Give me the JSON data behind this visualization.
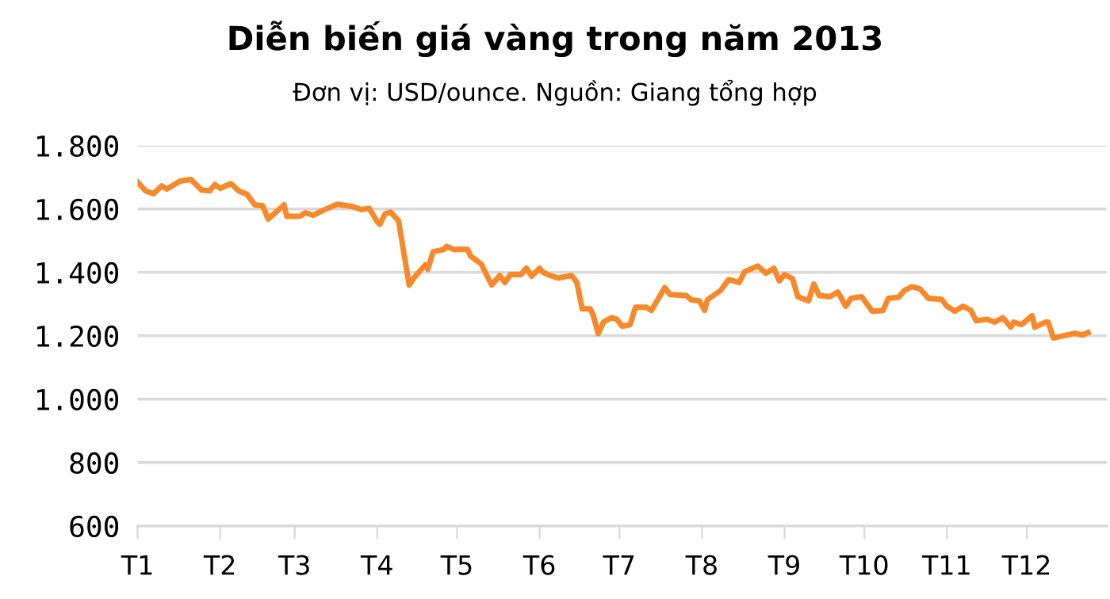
{
  "chart_data": {
    "type": "line",
    "title": "Diễn biến giá vàng trong năm 2013",
    "subtitle": "Đơn vị: USD/ounce. Nguồn: Giang tổng hợp",
    "series": [
      {
        "color": "#f7892a",
        "x": [
          "2013-01-01",
          "2013-01-04",
          "2013-01-07",
          "2013-01-10",
          "2013-01-12",
          "2013-01-17",
          "2013-01-21",
          "2013-01-25",
          "2013-01-28",
          "2013-01-30",
          "2013-02-01",
          "2013-02-05",
          "2013-02-08",
          "2013-02-11",
          "2013-02-14",
          "2013-02-17",
          "2013-02-19",
          "2013-02-22",
          "2013-02-25",
          "2013-02-26",
          "2013-03-03",
          "2013-03-05",
          "2013-03-08",
          "2013-03-12",
          "2013-03-17",
          "2013-03-23",
          "2013-03-26",
          "2013-03-29",
          "2013-04-01",
          "2013-04-02",
          "2013-04-04",
          "2013-04-06",
          "2013-04-09",
          "2013-04-13",
          "2013-04-15",
          "2013-04-19",
          "2013-04-20",
          "2013-04-22",
          "2013-04-26",
          "2013-04-27",
          "2013-04-30",
          "2013-05-02",
          "2013-05-05",
          "2013-05-06",
          "2013-05-10",
          "2013-05-14",
          "2013-05-17",
          "2013-05-19",
          "2013-05-21",
          "2013-05-25",
          "2013-05-27",
          "2013-05-29",
          "2013-06-01",
          "2013-06-02",
          "2013-06-04",
          "2013-06-08",
          "2013-06-13",
          "2013-06-15",
          "2013-06-17",
          "2013-06-20",
          "2013-06-21",
          "2013-06-23",
          "2013-06-25",
          "2013-06-28",
          "2013-06-30",
          "2013-07-02",
          "2013-07-05",
          "2013-07-07",
          "2013-07-11",
          "2013-07-13",
          "2013-07-18",
          "2013-07-20",
          "2013-07-26",
          "2013-07-28",
          "2013-07-31",
          "2013-08-02",
          "2013-08-03",
          "2013-08-08",
          "2013-08-11",
          "2013-08-15",
          "2013-08-17",
          "2013-08-22",
          "2013-08-25",
          "2013-08-28",
          "2013-08-30",
          "2013-09-01",
          "2013-09-04",
          "2013-09-06",
          "2013-09-10",
          "2013-09-12",
          "2013-09-14",
          "2013-09-18",
          "2013-09-21",
          "2013-09-24",
          "2013-09-26",
          "2013-09-30",
          "2013-10-04",
          "2013-10-08",
          "2013-10-10",
          "2013-10-14",
          "2013-10-16",
          "2013-10-19",
          "2013-10-22",
          "2013-10-25",
          "2013-10-30",
          "2013-11-01",
          "2013-11-04",
          "2013-11-07",
          "2013-11-10",
          "2013-11-12",
          "2013-11-16",
          "2013-11-19",
          "2013-11-22",
          "2013-11-25",
          "2013-11-26",
          "2013-11-29",
          "2013-12-03",
          "2013-12-04",
          "2013-12-08",
          "2013-12-09",
          "2013-12-11",
          "2013-12-16",
          "2013-12-19",
          "2013-12-22",
          "2013-12-24"
        ],
        "values": [
          1685,
          1657,
          1648,
          1673,
          1663,
          1688,
          1693,
          1660,
          1657,
          1677,
          1665,
          1680,
          1657,
          1647,
          1613,
          1610,
          1568,
          1590,
          1613,
          1577,
          1577,
          1588,
          1580,
          1597,
          1615,
          1607,
          1598,
          1602,
          1560,
          1552,
          1585,
          1590,
          1563,
          1360,
          1385,
          1423,
          1410,
          1465,
          1472,
          1482,
          1472,
          1473,
          1472,
          1452,
          1427,
          1360,
          1390,
          1368,
          1393,
          1393,
          1413,
          1388,
          1413,
          1402,
          1393,
          1382,
          1390,
          1368,
          1285,
          1285,
          1268,
          1207,
          1243,
          1257,
          1252,
          1230,
          1235,
          1290,
          1290,
          1280,
          1352,
          1330,
          1327,
          1313,
          1310,
          1280,
          1313,
          1343,
          1377,
          1368,
          1402,
          1420,
          1397,
          1413,
          1373,
          1393,
          1380,
          1323,
          1310,
          1363,
          1327,
          1323,
          1338,
          1293,
          1318,
          1323,
          1277,
          1280,
          1318,
          1322,
          1343,
          1355,
          1347,
          1318,
          1315,
          1293,
          1277,
          1293,
          1280,
          1247,
          1252,
          1243,
          1257,
          1227,
          1243,
          1235,
          1263,
          1227,
          1243,
          1243,
          1193,
          1202,
          1208,
          1202,
          1210
        ]
      }
    ],
    "xlim": [
      "2013-01-01",
      "2013-12-31"
    ],
    "xticks": [
      {
        "value": "2013-01-01",
        "label": "T1"
      },
      {
        "value": "2013-02-01",
        "label": "T2"
      },
      {
        "value": "2013-03-01",
        "label": "T3"
      },
      {
        "value": "2013-04-01",
        "label": "T4"
      },
      {
        "value": "2013-05-01",
        "label": "T5"
      },
      {
        "value": "2013-06-01",
        "label": "T6"
      },
      {
        "value": "2013-07-01",
        "label": "T7"
      },
      {
        "value": "2013-08-01",
        "label": "T8"
      },
      {
        "value": "2013-09-01",
        "label": "T9"
      },
      {
        "value": "2013-10-01",
        "label": "T10"
      },
      {
        "value": "2013-11-01",
        "label": "T11"
      },
      {
        "value": "2013-12-01",
        "label": "T12"
      }
    ],
    "ylim": [
      600,
      1800
    ],
    "yticks": [
      600,
      800,
      {
        "value": 1000,
        "label": "1.000"
      },
      {
        "value": 1200,
        "label": "1.200"
      },
      {
        "value": 1400,
        "label": "1.400"
      },
      {
        "value": 1600,
        "label": "1.600"
      },
      {
        "value": 1800,
        "label": "1.800"
      }
    ],
    "grid": "y",
    "marker": "none",
    "line_style": "solid"
  }
}
